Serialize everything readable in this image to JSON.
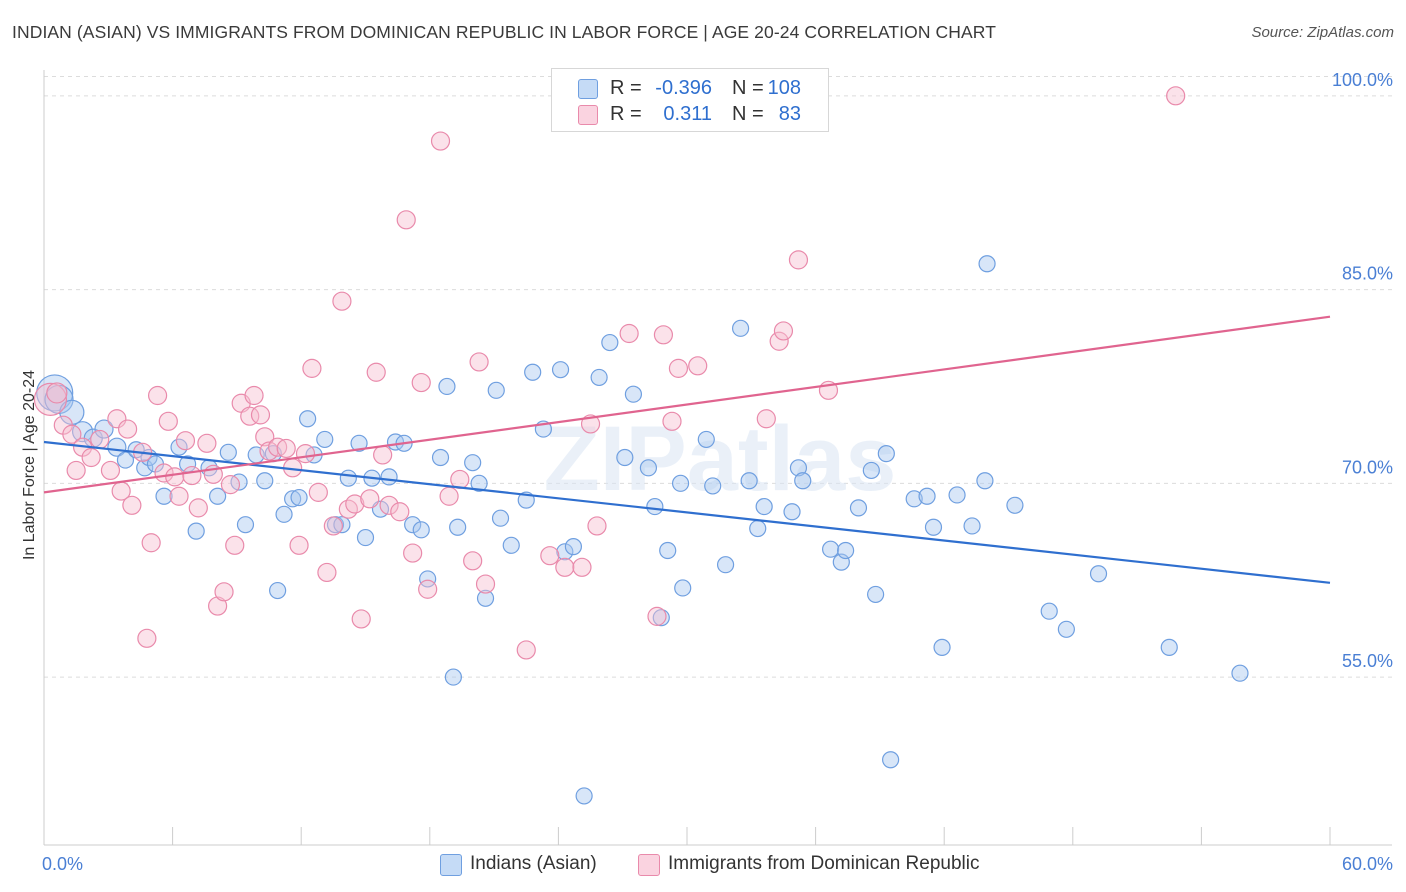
{
  "header": {
    "title": "INDIAN (ASIAN) VS IMMIGRANTS FROM DOMINICAN REPUBLIC IN LABOR FORCE | AGE 20-24 CORRELATION CHART",
    "source": "Source: ZipAtlas.com"
  },
  "legend": {
    "rows": [
      {
        "r_label": "R =",
        "r_value": "-0.396",
        "n_label": "N =",
        "n_value": "108"
      },
      {
        "r_label": "R =",
        "r_value": "0.311",
        "n_label": "N =",
        "n_value": "83"
      }
    ]
  },
  "bottom_legend": {
    "series_a": "Indians (Asian)",
    "series_b": "Immigrants from Dominican Republic"
  },
  "watermark": "ZIPatlas",
  "colors": {
    "blue_fill": "#a9c8f0",
    "blue_stroke": "#6f9fe0",
    "blue_line": "#2f6fcf",
    "pink_fill": "#f6bfd1",
    "pink_stroke": "#e98aab",
    "pink_line": "#e0648f",
    "tick_text": "#4a7fd4",
    "grid": "#dcdcdc"
  },
  "chart_data": {
    "type": "scatter",
    "ylabel": "In Labor Force | Age 20-24",
    "x_tick_labels": [
      "0.0%",
      "60.0%"
    ],
    "y_tick_labels": [
      "55.0%",
      "70.0%",
      "85.0%",
      "100.0%"
    ],
    "xlim": [
      0,
      60
    ],
    "ylim": [
      42,
      102
    ],
    "y_gridlines": [
      55,
      70,
      85,
      100
    ],
    "series": [
      {
        "name": "Indians (Asian)",
        "color": "#a9c8f0",
        "trend": [
          [
            0,
            73.2
          ],
          [
            60,
            62.3
          ]
        ],
        "points": [
          [
            0.5,
            77.0,
            18
          ],
          [
            0.7,
            76.5,
            14
          ],
          [
            1.3,
            75.5,
            12
          ],
          [
            1.8,
            74.0,
            10
          ],
          [
            2.3,
            73.5,
            9
          ],
          [
            2.8,
            74.2,
            9
          ],
          [
            3.4,
            72.8,
            9
          ],
          [
            3.8,
            71.8,
            8
          ],
          [
            4.3,
            72.6,
            8
          ],
          [
            4.7,
            71.2,
            8
          ],
          [
            4.9,
            72.0,
            8
          ],
          [
            5.2,
            71.5,
            8
          ],
          [
            5.6,
            69.0,
            8
          ],
          [
            6.3,
            72.8,
            8
          ],
          [
            6.7,
            71.5,
            8
          ],
          [
            7.1,
            66.3,
            8
          ],
          [
            7.7,
            71.2,
            8
          ],
          [
            8.1,
            69.0,
            8
          ],
          [
            8.6,
            72.4,
            8
          ],
          [
            9.1,
            70.1,
            8
          ],
          [
            9.4,
            66.8,
            8
          ],
          [
            9.9,
            72.2,
            8
          ],
          [
            10.3,
            70.2,
            8
          ],
          [
            10.7,
            72.3,
            8
          ],
          [
            10.9,
            61.7,
            8
          ],
          [
            11.2,
            67.6,
            8
          ],
          [
            11.6,
            68.8,
            8
          ],
          [
            11.9,
            68.9,
            8
          ],
          [
            12.3,
            75.0,
            8
          ],
          [
            12.6,
            72.2,
            8
          ],
          [
            13.1,
            73.4,
            8
          ],
          [
            13.6,
            66.8,
            8
          ],
          [
            13.9,
            66.8,
            8
          ],
          [
            14.2,
            70.4,
            8
          ],
          [
            14.7,
            73.1,
            8
          ],
          [
            15.0,
            65.8,
            8
          ],
          [
            15.3,
            70.4,
            8
          ],
          [
            15.7,
            68.0,
            8
          ],
          [
            16.1,
            70.5,
            8
          ],
          [
            16.4,
            73.2,
            8
          ],
          [
            16.8,
            73.1,
            8
          ],
          [
            17.2,
            66.8,
            8
          ],
          [
            17.6,
            66.4,
            8
          ],
          [
            17.9,
            62.6,
            8
          ],
          [
            18.5,
            72.0,
            8
          ],
          [
            18.8,
            77.5,
            8
          ],
          [
            19.1,
            55.0,
            8
          ],
          [
            19.3,
            66.6,
            8
          ],
          [
            20.0,
            71.6,
            8
          ],
          [
            20.3,
            70.0,
            8
          ],
          [
            20.6,
            61.1,
            8
          ],
          [
            21.1,
            77.2,
            8
          ],
          [
            21.3,
            67.3,
            8
          ],
          [
            21.8,
            65.2,
            8
          ],
          [
            22.5,
            68.7,
            8
          ],
          [
            22.8,
            78.6,
            8
          ],
          [
            23.3,
            74.2,
            8
          ],
          [
            24.1,
            78.8,
            8
          ],
          [
            24.3,
            64.7,
            8
          ],
          [
            24.7,
            65.1,
            8
          ],
          [
            25.2,
            45.8,
            8
          ],
          [
            25.9,
            78.2,
            8
          ],
          [
            26.4,
            80.9,
            8
          ],
          [
            27.1,
            72.0,
            8
          ],
          [
            27.5,
            76.9,
            8
          ],
          [
            28.2,
            71.2,
            8
          ],
          [
            28.5,
            68.2,
            8
          ],
          [
            28.8,
            59.6,
            8
          ],
          [
            29.1,
            64.8,
            8
          ],
          [
            29.7,
            70.0,
            8
          ],
          [
            29.8,
            61.9,
            8
          ],
          [
            30.9,
            73.4,
            8
          ],
          [
            31.2,
            69.8,
            8
          ],
          [
            31.8,
            63.7,
            8
          ],
          [
            32.5,
            82.0,
            8
          ],
          [
            32.9,
            70.2,
            8
          ],
          [
            33.3,
            66.5,
            8
          ],
          [
            33.6,
            68.2,
            8
          ],
          [
            34.9,
            67.8,
            8
          ],
          [
            35.2,
            71.2,
            8
          ],
          [
            35.4,
            70.2,
            8
          ],
          [
            36.7,
            64.9,
            8
          ],
          [
            37.2,
            63.9,
            8
          ],
          [
            37.4,
            64.8,
            8
          ],
          [
            38.0,
            68.1,
            8
          ],
          [
            38.6,
            71.0,
            8
          ],
          [
            38.8,
            61.4,
            8
          ],
          [
            39.3,
            72.3,
            8
          ],
          [
            39.5,
            48.6,
            8
          ],
          [
            40.6,
            68.8,
            8
          ],
          [
            41.2,
            69.0,
            8
          ],
          [
            41.5,
            66.6,
            8
          ],
          [
            41.9,
            57.3,
            8
          ],
          [
            42.6,
            69.1,
            8
          ],
          [
            43.3,
            66.7,
            8
          ],
          [
            43.9,
            70.2,
            8
          ],
          [
            44.0,
            87.0,
            8
          ],
          [
            45.3,
            68.3,
            8
          ],
          [
            46.9,
            60.1,
            8
          ],
          [
            47.7,
            58.7,
            8
          ],
          [
            49.2,
            63.0,
            8
          ],
          [
            52.5,
            57.3,
            8
          ],
          [
            55.8,
            55.3,
            8
          ]
        ]
      },
      {
        "name": "Immigrants from Dominican Republic",
        "color": "#f6bfd1",
        "trend": [
          [
            0,
            69.3
          ],
          [
            60,
            82.9
          ]
        ],
        "points": [
          [
            0.3,
            76.5,
            16
          ],
          [
            0.6,
            77.0,
            10
          ],
          [
            0.9,
            74.5,
            9
          ],
          [
            1.3,
            73.8,
            9
          ],
          [
            1.5,
            71.0,
            9
          ],
          [
            1.8,
            72.8,
            9
          ],
          [
            2.2,
            72.0,
            9
          ],
          [
            2.6,
            73.4,
            9
          ],
          [
            3.1,
            71.0,
            9
          ],
          [
            3.4,
            75.0,
            9
          ],
          [
            3.6,
            69.4,
            9
          ],
          [
            3.9,
            74.2,
            9
          ],
          [
            4.1,
            68.3,
            9
          ],
          [
            4.6,
            72.4,
            9
          ],
          [
            4.8,
            58.0,
            9
          ],
          [
            5.0,
            65.4,
            9
          ],
          [
            5.3,
            76.8,
            9
          ],
          [
            5.6,
            70.8,
            9
          ],
          [
            5.8,
            74.8,
            9
          ],
          [
            6.1,
            70.5,
            9
          ],
          [
            6.3,
            69.0,
            9
          ],
          [
            6.6,
            73.3,
            9
          ],
          [
            6.9,
            70.6,
            9
          ],
          [
            7.2,
            68.1,
            9
          ],
          [
            7.6,
            73.1,
            9
          ],
          [
            7.9,
            70.7,
            9
          ],
          [
            8.1,
            60.5,
            9
          ],
          [
            8.4,
            61.6,
            9
          ],
          [
            8.7,
            69.9,
            9
          ],
          [
            8.9,
            65.2,
            9
          ],
          [
            9.2,
            76.2,
            9
          ],
          [
            9.6,
            75.2,
            9
          ],
          [
            9.8,
            76.8,
            9
          ],
          [
            10.1,
            75.3,
            9
          ],
          [
            10.3,
            73.6,
            9
          ],
          [
            10.5,
            72.5,
            9
          ],
          [
            10.9,
            72.8,
            9
          ],
          [
            11.3,
            72.7,
            9
          ],
          [
            11.6,
            71.2,
            9
          ],
          [
            11.9,
            65.2,
            9
          ],
          [
            12.2,
            72.3,
            9
          ],
          [
            12.5,
            78.9,
            9
          ],
          [
            12.8,
            69.3,
            9
          ],
          [
            13.2,
            63.1,
            9
          ],
          [
            13.5,
            66.7,
            9
          ],
          [
            13.9,
            84.1,
            9
          ],
          [
            14.2,
            68.0,
            9
          ],
          [
            14.5,
            68.4,
            9
          ],
          [
            14.8,
            59.5,
            9
          ],
          [
            15.2,
            68.8,
            9
          ],
          [
            15.5,
            78.6,
            9
          ],
          [
            15.8,
            72.2,
            9
          ],
          [
            16.1,
            68.3,
            9
          ],
          [
            16.6,
            67.8,
            9
          ],
          [
            16.9,
            90.4,
            9
          ],
          [
            17.2,
            64.6,
            9
          ],
          [
            17.6,
            77.8,
            9
          ],
          [
            17.9,
            61.8,
            9
          ],
          [
            18.5,
            96.5,
            9
          ],
          [
            18.9,
            69.0,
            9
          ],
          [
            19.4,
            70.3,
            9
          ],
          [
            20.0,
            64.0,
            9
          ],
          [
            20.3,
            79.4,
            9
          ],
          [
            20.6,
            62.2,
            9
          ],
          [
            22.5,
            57.1,
            9
          ],
          [
            23.6,
            64.4,
            9
          ],
          [
            24.3,
            63.5,
            9
          ],
          [
            25.1,
            63.5,
            9
          ],
          [
            25.5,
            74.6,
            9
          ],
          [
            25.8,
            66.7,
            9
          ],
          [
            27.3,
            81.6,
            9
          ],
          [
            28.6,
            59.7,
            9
          ],
          [
            28.9,
            81.5,
            9
          ],
          [
            29.3,
            74.8,
            9
          ],
          [
            29.6,
            78.9,
            9
          ],
          [
            30.5,
            79.1,
            9
          ],
          [
            33.7,
            75.0,
            9
          ],
          [
            34.3,
            81.0,
            9
          ],
          [
            34.5,
            81.8,
            9
          ],
          [
            35.2,
            87.3,
            9
          ],
          [
            36.6,
            77.2,
            9
          ],
          [
            52.8,
            100.0,
            9
          ]
        ]
      }
    ]
  }
}
